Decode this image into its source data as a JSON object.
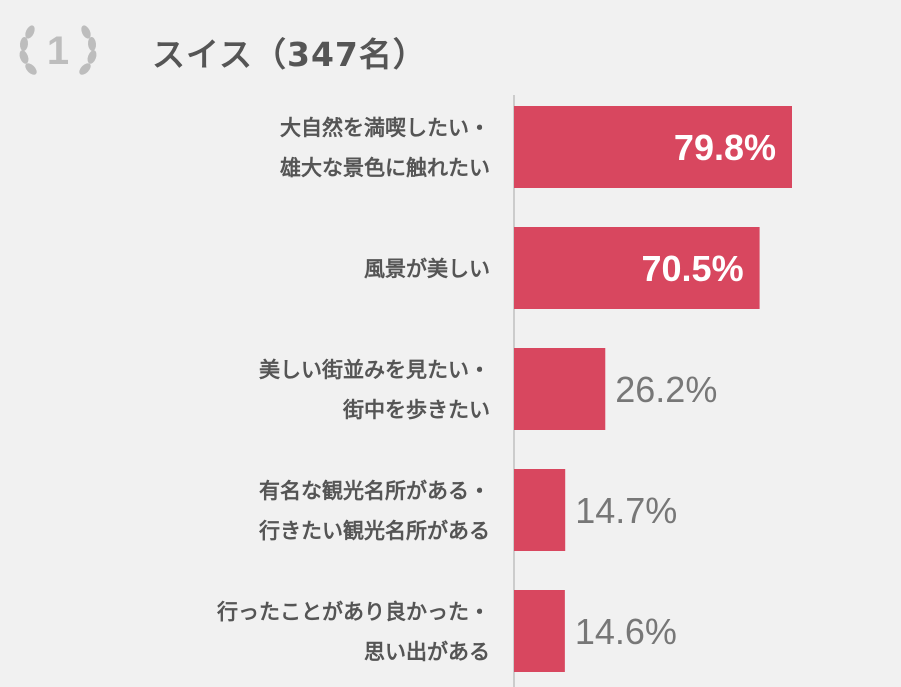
{
  "header": {
    "rank": "1",
    "title": "スイス（347名）"
  },
  "colors": {
    "bar": "#d8475f",
    "label_inside": "#ffffff",
    "label_outside": "#777777",
    "axis": "#cccccc"
  },
  "chart_data": {
    "type": "bar",
    "orientation": "horizontal",
    "categories": [
      [
        "大自然を満喫したい・",
        "雄大な景色に触れたい"
      ],
      [
        "風景が美しい"
      ],
      [
        "美しい街並みを見たい・",
        "街中を歩きたい"
      ],
      [
        "有名な観光名所がある・",
        "行きたい観光名所がある"
      ],
      [
        "行ったことがあり良かった・",
        "思い出がある"
      ]
    ],
    "values": [
      79.8,
      70.5,
      26.2,
      14.7,
      14.6
    ],
    "value_labels": [
      "79.8%",
      "70.5%",
      "26.2%",
      "14.7%",
      "14.6%"
    ],
    "unit": "%",
    "xlim": [
      0,
      100
    ],
    "grid": false,
    "legend": "none"
  }
}
